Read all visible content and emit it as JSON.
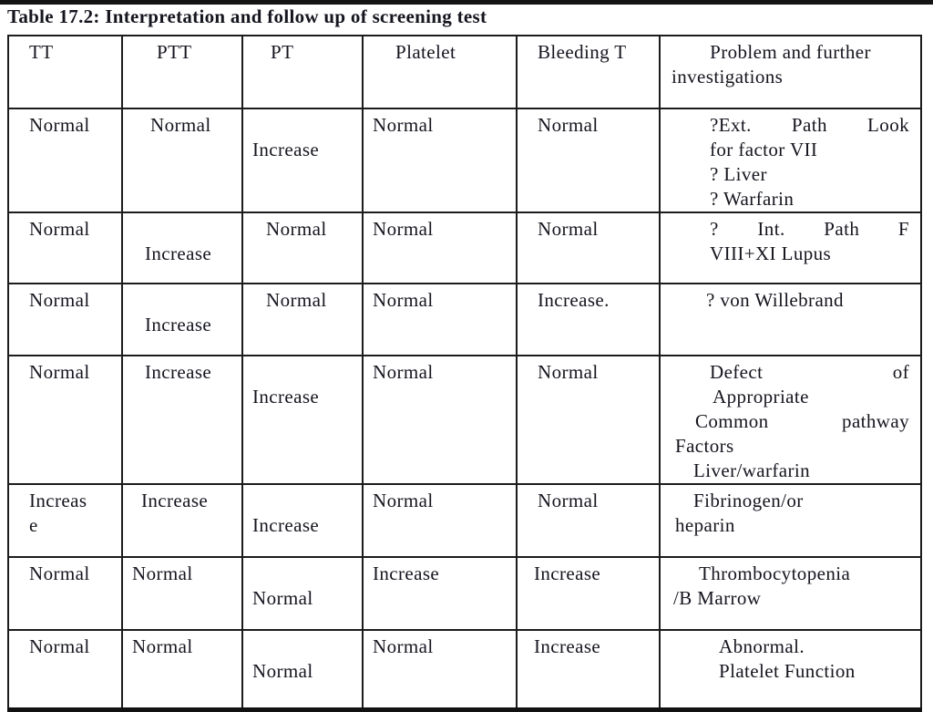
{
  "page": {
    "title": "Table 17.2: Interpretation and follow up of screening test"
  },
  "table": {
    "header": {
      "cells": [
        {
          "lines": [
            {
              "t": "TT",
              "pl": 22
            }
          ]
        },
        {
          "lines": [
            {
              "t": "PTT",
              "pl": 37
            }
          ]
        },
        {
          "lines": [
            {
              "t": "PT",
              "pl": 30
            }
          ]
        },
        {
          "lines": [
            {
              "t": "Platelet",
              "pl": 35
            }
          ]
        },
        {
          "lines": [
            {
              "t": "Bleeding T",
              "pl": 22
            }
          ]
        },
        {
          "lines": [
            {
              "t": "Problem and further",
              "a": "c"
            },
            {
              "t": "investigations",
              "pl": 12
            }
          ]
        }
      ]
    },
    "rows": [
      {
        "cells": [
          {
            "lines": [
              {
                "t": "Normal",
                "pl": 22
              }
            ]
          },
          {
            "lines": [
              {
                "t": "Normal",
                "pl": 30
              }
            ]
          },
          {
            "top": 1,
            "lines": [
              {
                "t": "Increase",
                "pl": 10
              }
            ]
          },
          {
            "lines": [
              {
                "t": "Normal",
                "pl": 10
              }
            ]
          },
          {
            "lines": [
              {
                "t": "Normal",
                "pl": 22
              }
            ]
          },
          {
            "lines": [
              {
                "t": "?Ext. Path Look",
                "a": "j",
                "pl": 54
              },
              {
                "t": "for factor VII",
                "pl": 54
              },
              {
                "t": "? Liver",
                "pl": 54
              },
              {
                "t": "? Warfarin",
                "pl": 54
              }
            ]
          }
        ]
      },
      {
        "cells": [
          {
            "lines": [
              {
                "t": "Normal",
                "pl": 22
              }
            ]
          },
          {
            "top": 1,
            "lines": [
              {
                "t": "Increase",
                "pl": 24
              }
            ]
          },
          {
            "lines": [
              {
                "t": "Normal",
                "pl": 25
              }
            ]
          },
          {
            "lines": [
              {
                "t": "Normal",
                "pl": 10
              }
            ]
          },
          {
            "lines": [
              {
                "t": "Normal",
                "pl": 22
              }
            ]
          },
          {
            "lines": [
              {
                "t": "? Int. Path F",
                "a": "j",
                "pl": 54
              },
              {
                "t": "VIII+XI Lupus",
                "pl": 54
              }
            ]
          }
        ]
      },
      {
        "cells": [
          {
            "lines": [
              {
                "t": "Normal",
                "pl": 22
              }
            ]
          },
          {
            "top": 1,
            "lines": [
              {
                "t": "Increase",
                "pl": 24
              }
            ]
          },
          {
            "lines": [
              {
                "t": "Normal",
                "pl": 25
              }
            ]
          },
          {
            "lines": [
              {
                "t": "Normal",
                "pl": 10
              }
            ]
          },
          {
            "lines": [
              {
                "t": "Increase.",
                "pl": 22
              }
            ]
          },
          {
            "lines": [
              {
                "t": "? von Willebrand",
                "pl": 50
              }
            ]
          }
        ]
      },
      {
        "cells": [
          {
            "lines": [
              {
                "t": "Normal",
                "pl": 22
              }
            ]
          },
          {
            "lines": [
              {
                "t": "Increase",
                "pl": 24
              }
            ]
          },
          {
            "top": 1,
            "lines": [
              {
                "t": "Increase",
                "pl": 10
              }
            ]
          },
          {
            "lines": [
              {
                "t": "Normal",
                "pl": 10
              }
            ]
          },
          {
            "lines": [
              {
                "t": "Normal",
                "pl": 22
              }
            ]
          },
          {
            "lines": [
              {
                "t": "Defect of",
                "a": "j",
                "pl": 54
              },
              {
                "t": "Appropriate",
                "pl": 57
              },
              {
                "t": "Common pathway",
                "a": "j",
                "pl": 38
              },
              {
                "t": "Factors",
                "pl": 16
              },
              {
                "t": "Liver/warfarin",
                "pl": 36
              }
            ]
          }
        ]
      },
      {
        "cells": [
          {
            "lines": [
              {
                "t": "Increas",
                "pl": 22
              },
              {
                "t": "e",
                "pl": 22
              }
            ]
          },
          {
            "lines": [
              {
                "t": "Increase",
                "pl": 20
              }
            ]
          },
          {
            "top": 1,
            "lines": [
              {
                "t": "Increase",
                "pl": 10
              }
            ]
          },
          {
            "lines": [
              {
                "t": "Normal",
                "pl": 10
              }
            ]
          },
          {
            "lines": [
              {
                "t": "Normal",
                "pl": 22
              }
            ]
          },
          {
            "lines": [
              {
                "t": "Fibrinogen/or",
                "pl": 36
              },
              {
                "t": "heparin",
                "pl": 16
              }
            ]
          }
        ]
      },
      {
        "cells": [
          {
            "lines": [
              {
                "t": "Normal",
                "pl": 22
              }
            ]
          },
          {
            "lines": [
              {
                "t": "Normal",
                "pl": 10
              }
            ]
          },
          {
            "top": 1,
            "lines": [
              {
                "t": "Normal",
                "pl": 10
              }
            ]
          },
          {
            "lines": [
              {
                "t": "Increase",
                "pl": 10
              }
            ]
          },
          {
            "lines": [
              {
                "t": "Increase",
                "pl": 18
              }
            ]
          },
          {
            "lines": [
              {
                "t": "Thrombocytopenia",
                "pl": 42
              },
              {
                "t": "/B Marrow",
                "pl": 14
              }
            ]
          }
        ]
      },
      {
        "cells": [
          {
            "lines": [
              {
                "t": "Normal",
                "pl": 22
              }
            ]
          },
          {
            "lines": [
              {
                "t": "Normal",
                "pl": 10
              }
            ]
          },
          {
            "top": 1,
            "lines": [
              {
                "t": "Normal",
                "pl": 10
              }
            ]
          },
          {
            "lines": [
              {
                "t": "Normal",
                "pl": 10
              }
            ]
          },
          {
            "lines": [
              {
                "t": "Increase",
                "pl": 18
              }
            ]
          },
          {
            "lines": [
              {
                "t": "Abnormal.",
                "pl": 64
              },
              {
                "t": "Platelet Function",
                "pl": 64
              }
            ]
          }
        ]
      }
    ]
  }
}
